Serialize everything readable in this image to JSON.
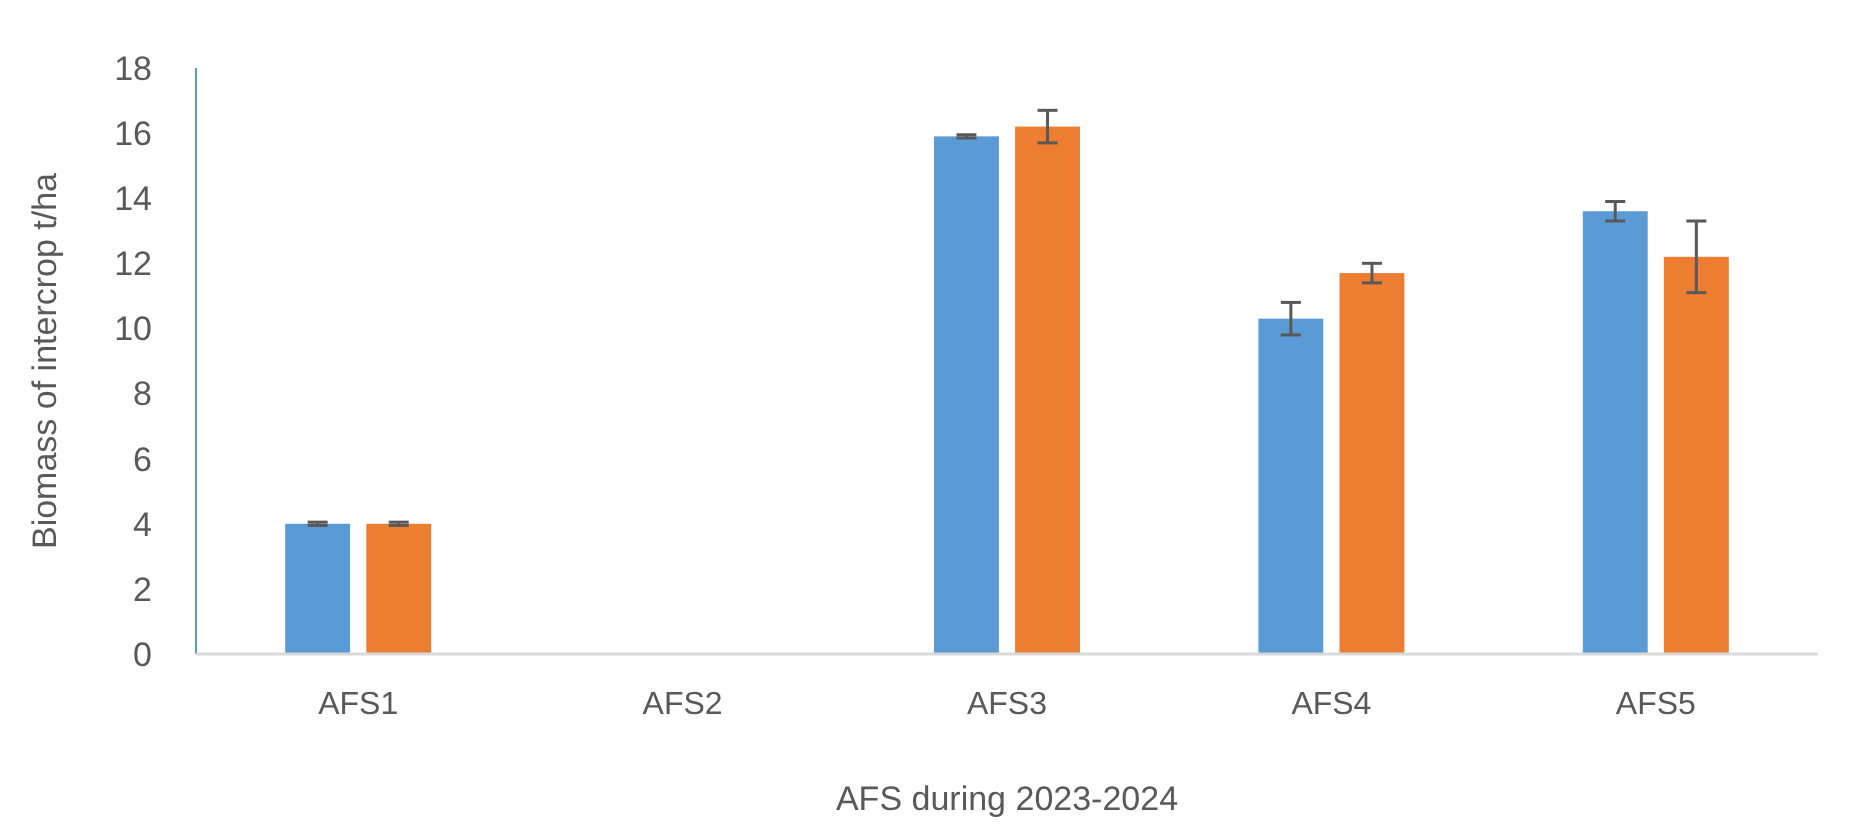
{
  "chart_data": {
    "type": "bar",
    "xlabel": "AFS during 2023-2024",
    "ylabel": "Biomass of intercrop t/ha",
    "categories": [
      "AFS1",
      "AFS2",
      "AFS3",
      "AFS4",
      "AFS5"
    ],
    "series": [
      {
        "color": "#5b9bd5",
        "values": [
          4.0,
          0,
          15.9,
          10.3,
          13.6
        ],
        "errors": [
          0.05,
          null,
          0.05,
          0.5,
          0.3
        ]
      },
      {
        "color": "#ed7d31",
        "values": [
          4.0,
          0,
          16.2,
          11.7,
          12.2
        ],
        "errors": [
          0.05,
          null,
          0.5,
          0.3,
          1.1
        ]
      }
    ],
    "ylim": [
      0,
      18
    ],
    "yticks": [
      0,
      2,
      4,
      6,
      8,
      10,
      12,
      14,
      16,
      18
    ],
    "grid": false
  }
}
